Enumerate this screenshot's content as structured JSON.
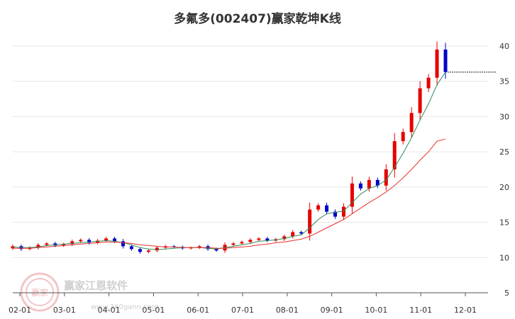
{
  "chart_data": {
    "type": "candlestick",
    "title": "多氟多(002407)赢家乾坤K线",
    "xlabel": "",
    "ylabel": "",
    "ylim": [
      5,
      42
    ],
    "y_ticks": [
      5,
      10,
      15,
      20,
      25,
      30,
      35,
      40
    ],
    "x_ticks": [
      "02-01",
      "03-01",
      "04-01",
      "05-01",
      "06-01",
      "07-01",
      "08-01",
      "09-01",
      "10-01",
      "11-01",
      "12-01"
    ],
    "grid": "horizontal",
    "last_close": 36.3,
    "colors": {
      "up": "#e60000",
      "down": "#0000cc",
      "ma_short": "#2e8b57",
      "ma_long": "#e83030"
    },
    "series": [
      {
        "kind": "close",
        "values": [
          11.6,
          11.2,
          11.4,
          11.8,
          12.0,
          11.7,
          11.9,
          12.3,
          12.5,
          12.1,
          12.4,
          12.7,
          12.3,
          11.6,
          11.2,
          10.8,
          11.0,
          11.4,
          11.6,
          11.5,
          11.3,
          11.4,
          11.6,
          11.2,
          11.0,
          11.8,
          12.0,
          12.2,
          12.5,
          12.7,
          12.4,
          12.6,
          13.0,
          13.6,
          13.4,
          16.8,
          17.4,
          16.5,
          15.8,
          17.2,
          20.5,
          19.8,
          21.0,
          20.2,
          22.5,
          26.5,
          27.8,
          30.5,
          34.0,
          35.5,
          39.5,
          36.3
        ]
      },
      {
        "kind": "ma_short",
        "values": [
          11.5,
          11.4,
          11.4,
          11.5,
          11.7,
          11.8,
          11.9,
          12.0,
          12.1,
          12.2,
          12.3,
          12.4,
          12.3,
          12.1,
          11.8,
          11.4,
          11.2,
          11.1,
          11.2,
          11.3,
          11.4,
          11.4,
          11.4,
          11.3,
          11.2,
          11.4,
          11.6,
          11.8,
          12.0,
          12.3,
          12.4,
          12.5,
          12.7,
          13.0,
          13.2,
          14.2,
          15.4,
          16.2,
          16.4,
          16.6,
          17.8,
          19.0,
          19.8,
          20.2,
          21.0,
          22.8,
          24.8,
          27.0,
          29.5,
          31.8,
          34.5,
          36.3
        ]
      },
      {
        "kind": "ma_long",
        "values": [
          11.3,
          11.3,
          11.3,
          11.4,
          11.5,
          11.6,
          11.7,
          11.8,
          11.9,
          12.0,
          12.1,
          12.2,
          12.2,
          12.1,
          12.0,
          11.8,
          11.7,
          11.6,
          11.5,
          11.5,
          11.4,
          11.4,
          11.4,
          11.4,
          11.3,
          11.3,
          11.4,
          11.5,
          11.6,
          11.8,
          11.9,
          12.1,
          12.2,
          12.4,
          12.6,
          13.0,
          13.6,
          14.2,
          14.8,
          15.4,
          16.2,
          17.0,
          17.8,
          18.5,
          19.3,
          20.2,
          21.3,
          22.5,
          23.8,
          25.0,
          26.5,
          26.8
        ]
      }
    ]
  },
  "watermark": {
    "logo_text": "赢家",
    "name": "赢家江恩软件",
    "url": "www.360gann.com"
  }
}
